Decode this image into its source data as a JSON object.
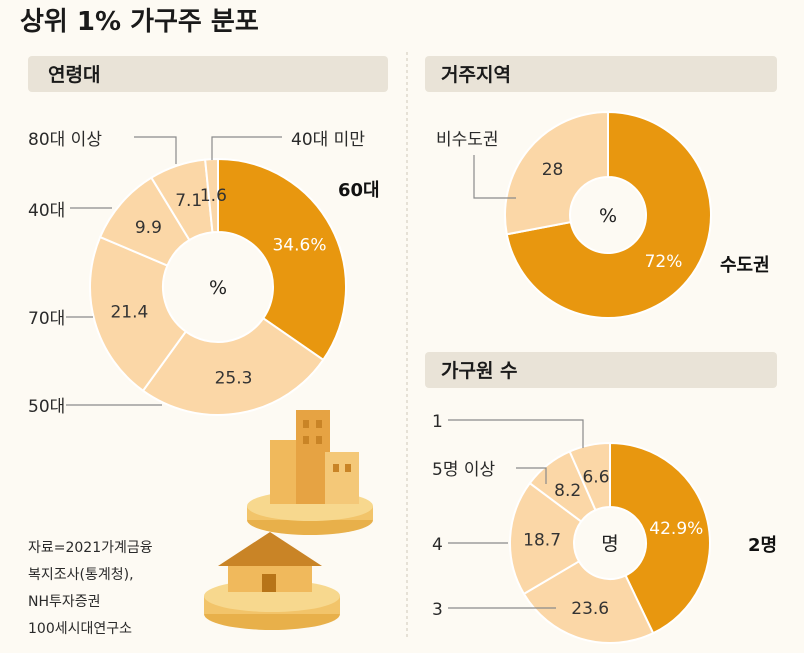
{
  "title": "상위 1% 가구주 분포",
  "colors": {
    "primary": "#e8970f",
    "light": "#fbd7a7",
    "label_on_primary": "#ffffff",
    "label_on_light": "#333333"
  },
  "source": [
    "자료=2021가계금융",
    "복지조사(통계청),",
    "NH투자증권",
    "100세시대연구소"
  ],
  "chart_data": [
    {
      "type": "pie",
      "title": "연령대",
      "unit": "%",
      "slices": [
        {
          "label": "60대",
          "value": 34.6,
          "display": "34.6%",
          "highlight": true
        },
        {
          "label": "50대",
          "value": 25.3,
          "display": "25.3",
          "highlight": false
        },
        {
          "label": "70대",
          "value": 21.4,
          "display": "21.4",
          "highlight": false
        },
        {
          "label": "40대",
          "value": 9.9,
          "display": "9.9",
          "highlight": false
        },
        {
          "label": "80대 이상",
          "value": 7.1,
          "display": "7.1",
          "highlight": false
        },
        {
          "label": "40대 미만",
          "value": 1.6,
          "display": "1.6",
          "highlight": false
        }
      ]
    },
    {
      "type": "pie",
      "title": "거주지역",
      "unit": "%",
      "slices": [
        {
          "label": "수도권",
          "value": 72,
          "display": "72%",
          "highlight": true
        },
        {
          "label": "비수도권",
          "value": 28,
          "display": "28",
          "highlight": false
        }
      ]
    },
    {
      "type": "pie",
      "title": "가구원 수",
      "unit": "명",
      "slices": [
        {
          "label": "2명",
          "value": 42.9,
          "display": "42.9%",
          "highlight": true
        },
        {
          "label": "3",
          "value": 23.6,
          "display": "23.6",
          "highlight": false
        },
        {
          "label": "4",
          "value": 18.7,
          "display": "18.7",
          "highlight": false
        },
        {
          "label": "5명 이상",
          "value": 8.2,
          "display": "8.2",
          "highlight": false
        },
        {
          "label": "1",
          "value": 6.6,
          "display": "6.6",
          "highlight": false
        }
      ]
    }
  ]
}
